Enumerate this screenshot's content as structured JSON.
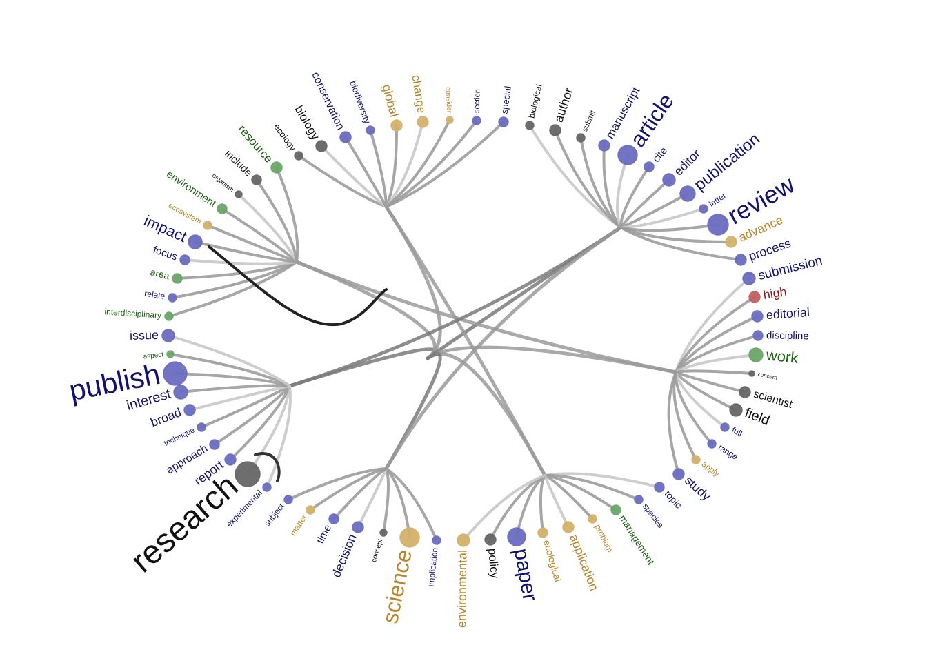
{
  "nodes": [
    {
      "label": "research"
    },
    {
      "label": "report"
    },
    {
      "label": "approach"
    },
    {
      "label": "technique"
    },
    {
      "label": "broad"
    },
    {
      "label": "interest"
    },
    {
      "label": "publish"
    },
    {
      "label": "aspect"
    },
    {
      "label": "issue"
    },
    {
      "label": "interdisciplinary"
    },
    {
      "label": "relate"
    },
    {
      "label": "area"
    },
    {
      "label": "focus"
    },
    {
      "label": "impact"
    },
    {
      "label": "ecosystem"
    },
    {
      "label": "environment"
    },
    {
      "label": "organism"
    },
    {
      "label": "include"
    },
    {
      "label": "resource"
    },
    {
      "label": "ecology"
    },
    {
      "label": "biology"
    },
    {
      "label": "conservation"
    },
    {
      "label": "biodiversity"
    },
    {
      "label": "global"
    },
    {
      "label": "change"
    },
    {
      "label": "consider"
    },
    {
      "label": "section"
    },
    {
      "label": "special"
    },
    {
      "label": "biological"
    },
    {
      "label": "author"
    },
    {
      "label": "submit"
    },
    {
      "label": "manuscript"
    },
    {
      "label": "article"
    },
    {
      "label": "cite"
    },
    {
      "label": "editor"
    },
    {
      "label": "publication"
    },
    {
      "label": "letter"
    },
    {
      "label": "review"
    },
    {
      "label": "advance"
    },
    {
      "label": "process"
    },
    {
      "label": "submission"
    },
    {
      "label": "high"
    },
    {
      "label": "editorial"
    },
    {
      "label": "discipline"
    },
    {
      "label": "work"
    },
    {
      "label": "concern"
    },
    {
      "label": "scientist"
    },
    {
      "label": "field"
    },
    {
      "label": "full"
    },
    {
      "label": "range"
    },
    {
      "label": "apply"
    },
    {
      "label": "study"
    },
    {
      "label": "topic"
    },
    {
      "label": "species"
    },
    {
      "label": "management"
    },
    {
      "label": "problem"
    },
    {
      "label": "application"
    },
    {
      "label": "ecological"
    },
    {
      "label": "paper"
    },
    {
      "label": "policy"
    },
    {
      "label": "environmental"
    },
    {
      "label": "implication"
    },
    {
      "label": "science"
    },
    {
      "label": "concept"
    },
    {
      "label": "decision"
    },
    {
      "label": "time"
    },
    {
      "label": "matter"
    },
    {
      "label": "subject"
    },
    {
      "label": "experimental"
    }
  ]
}
